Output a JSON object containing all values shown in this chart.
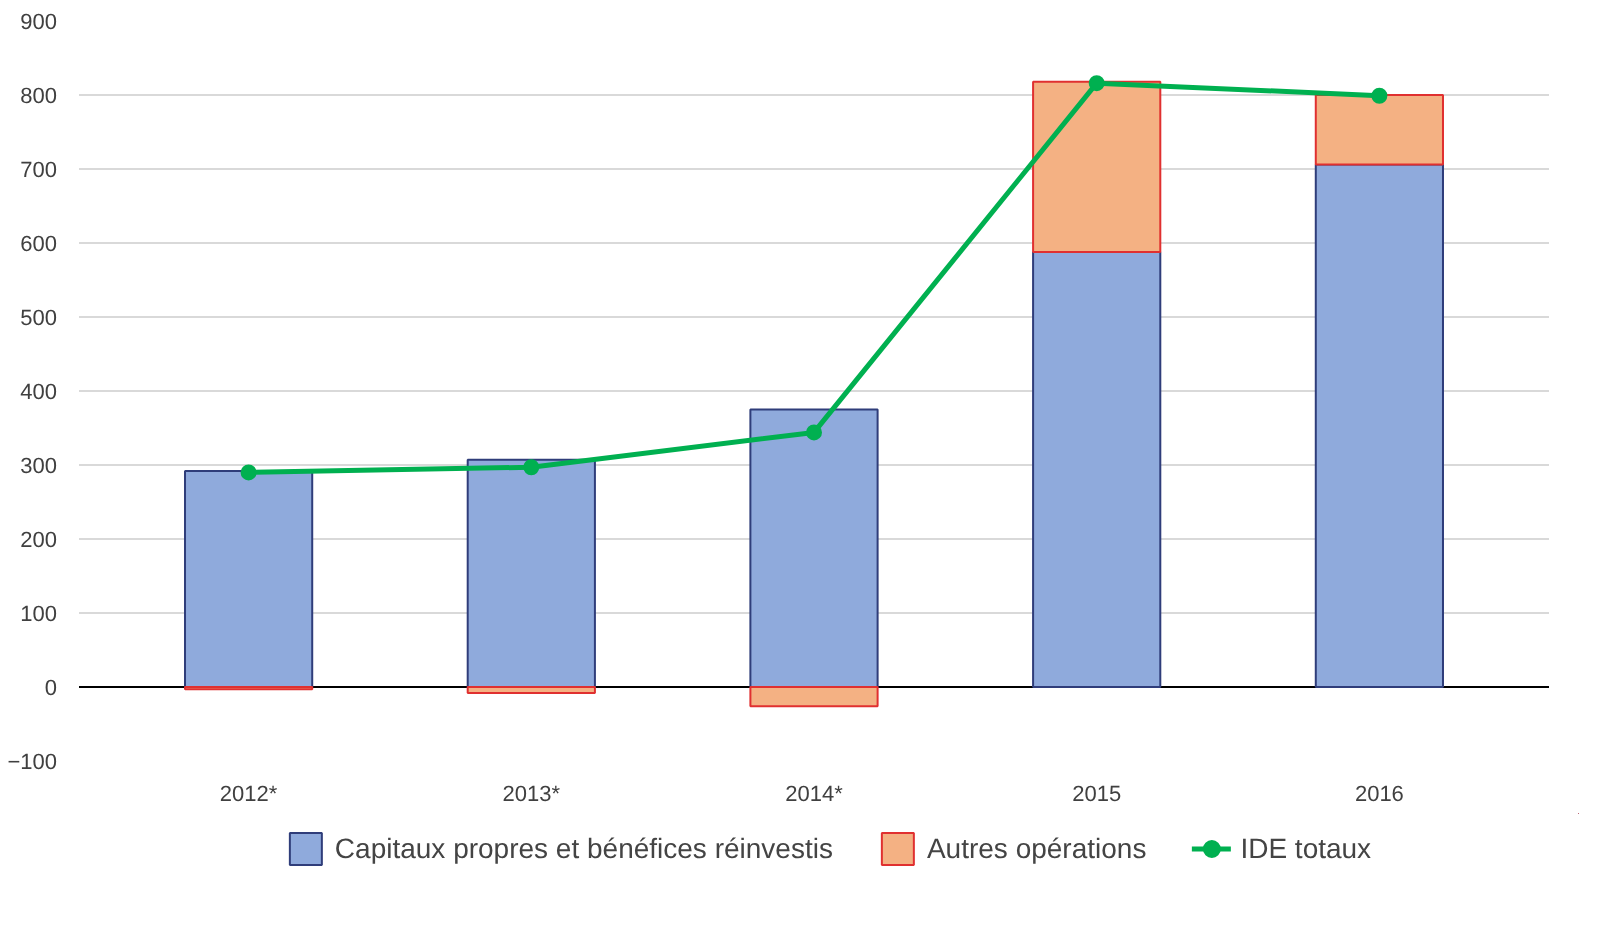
{
  "chart_data": {
    "type": "bar",
    "stacked": true,
    "categories": [
      "2012*",
      "2013*",
      "2014*",
      "2015",
      "2016"
    ],
    "series": [
      {
        "name": "Capitaux propres et bénéfices réinvestis",
        "color": "#8faadc",
        "values": [
          292,
          307,
          375,
          588,
          706
        ]
      },
      {
        "name": "Autres opérations",
        "color": "#f4b183",
        "values": [
          -3,
          -8,
          -26,
          230,
          94
        ]
      },
      {
        "name": "IDE totaux",
        "color": "#00b050",
        "type": "line",
        "values": [
          290,
          297,
          344,
          816,
          799
        ]
      }
    ],
    "ylim": [
      -100,
      900
    ],
    "yticks": [
      -100,
      0,
      100,
      200,
      300,
      400,
      500,
      600,
      700,
      800,
      900
    ],
    "grid": "y",
    "legend": "bottom",
    "marker": "circle"
  }
}
